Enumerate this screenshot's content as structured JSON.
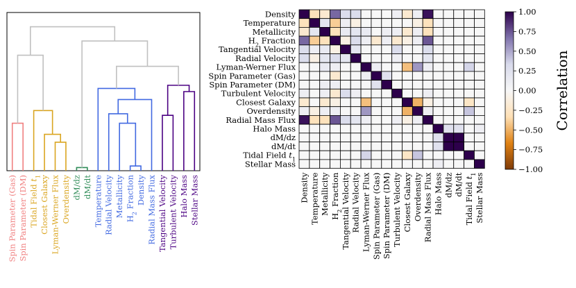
{
  "chart_data": [
    {
      "type": "dendrogram",
      "leaves": [
        {
          "label": "Spin Parameter (Gas)",
          "group": "red"
        },
        {
          "label": "Spin Parameter (DM)",
          "group": "red"
        },
        {
          "label": "Tidal Field t1",
          "group": "gold"
        },
        {
          "label": "Closest Galaxy",
          "group": "gold"
        },
        {
          "label": "Lyman-Werner Flux",
          "group": "gold"
        },
        {
          "label": "Overdensity",
          "group": "gold"
        },
        {
          "label": "dM/dz",
          "group": "green"
        },
        {
          "label": "dM/dt",
          "group": "green"
        },
        {
          "label": "Temperature",
          "group": "blue"
        },
        {
          "label": "Radial Velocity",
          "group": "blue"
        },
        {
          "label": "Metallicity",
          "group": "blue"
        },
        {
          "label": "H2 Fraction",
          "group": "blue"
        },
        {
          "label": "Density",
          "group": "blue"
        },
        {
          "label": "Radial Mass Flux",
          "group": "blue"
        },
        {
          "label": "Tangential Velocity",
          "group": "purple"
        },
        {
          "label": "Turbulent Velocity",
          "group": "purple"
        },
        {
          "label": "Halo Mass",
          "group": "purple"
        },
        {
          "label": "Stellar Mass",
          "group": "purple"
        }
      ],
      "group_colors": {
        "red": "#f08080",
        "gold": "#daa520",
        "green": "#2e8b57",
        "blue": "#4169e1",
        "purple": "#4b0082",
        "link": "#c0c0c0"
      },
      "merges": [
        {
          "a": 0,
          "b": 1,
          "h": 0.3
        },
        {
          "a": 4,
          "b": 5,
          "h": 0.18
        },
        {
          "a": 3,
          "b": 19,
          "h": 0.23
        },
        {
          "a": 2,
          "b": 20,
          "h": 0.38
        },
        {
          "a": 6,
          "b": 7,
          "h": 0.02
        },
        {
          "a": 11,
          "b": 12,
          "h": 0.03
        },
        {
          "a": 10,
          "b": 23,
          "h": 0.3
        },
        {
          "a": 9,
          "b": 24,
          "h": 0.36
        },
        {
          "a": 25,
          "b": 13,
          "h": 0.45
        },
        {
          "a": 8,
          "b": 26,
          "h": 0.52
        },
        {
          "a": 16,
          "b": 17,
          "h": 0.5
        },
        {
          "a": 14,
          "b": 15,
          "h": 0.35
        },
        {
          "a": 29,
          "b": 28,
          "h": 0.54
        },
        {
          "a": 27,
          "b": 30,
          "h": 0.66
        },
        {
          "a": 22,
          "b": 31,
          "h": 0.82
        },
        {
          "a": 18,
          "b": 21,
          "h": 0.73
        },
        {
          "a": 33,
          "b": 32,
          "h": 0.91
        }
      ],
      "ylim": [
        0,
        1
      ]
    },
    {
      "type": "heatmap",
      "row_labels": [
        "Density",
        "Temperature",
        "Metallicity",
        "H2 Fraction",
        "Tangential Velocity",
        "Radial Velocity",
        "Lyman-Werner Flux",
        "Spin Parameter (Gas)",
        "Spin Parameter (DM)",
        "Turbulent Velocity",
        "Closest Galaxy",
        "Overdensity",
        "Radial Mass Flux",
        "Halo Mass",
        "dM/dz",
        "dM/dt",
        "Tidal Field t1",
        "Stellar Mass"
      ],
      "col_labels": [
        "Density",
        "Temperature",
        "Metallicity",
        "H2 Fraction",
        "Tangential Velocity",
        "Radial Velocity",
        "Lyman-Werner Flux",
        "Spin Parameter (Gas)",
        "Spin Parameter (DM)",
        "Turbulent Velocity",
        "Closest Galaxy",
        "Overdensity",
        "Radial Mass Flux",
        "Halo Mass",
        "dM/dz",
        "dM/dt",
        "Tidal Field t1",
        "Stellar Mass"
      ],
      "values": [
        [
          1,
          -0.3,
          -0.2,
          0.7,
          0.3,
          0.3,
          0,
          0,
          0,
          0.1,
          -0.2,
          0.1,
          0.95,
          0,
          0,
          0,
          0,
          0
        ],
        [
          -0.3,
          1,
          0.2,
          -0.4,
          0.1,
          -0.1,
          0,
          0,
          0,
          0,
          0,
          -0.1,
          -0.3,
          0,
          0,
          0,
          0,
          0
        ],
        [
          -0.2,
          0.2,
          1,
          -0.3,
          0.15,
          0.2,
          0.15,
          0,
          0.1,
          0.1,
          -0.2,
          0.1,
          -0.3,
          0,
          0,
          0,
          0,
          0
        ],
        [
          0.7,
          -0.4,
          -0.3,
          1,
          -0.1,
          0.3,
          0.1,
          -0.2,
          0.1,
          -0.2,
          -0.1,
          0.1,
          0.75,
          0,
          0,
          0,
          0,
          0
        ],
        [
          0.3,
          0.1,
          0.15,
          -0.1,
          1,
          0.2,
          0,
          0,
          0,
          0.3,
          0,
          0,
          0.3,
          0,
          0,
          0,
          0,
          0
        ],
        [
          0.3,
          -0.1,
          0.2,
          0.3,
          0.2,
          1,
          0,
          0,
          0,
          0.1,
          0,
          0,
          0.2,
          0,
          0,
          0,
          0,
          0
        ],
        [
          0,
          0,
          0.15,
          0.1,
          0,
          0,
          1,
          0.1,
          0,
          0,
          -0.45,
          0.55,
          0.1,
          0,
          0,
          0,
          0.35,
          0
        ],
        [
          0,
          0,
          0,
          -0.2,
          0,
          0,
          0.1,
          1,
          0.25,
          0,
          0,
          0,
          0,
          0,
          0,
          0,
          0,
          0
        ],
        [
          0,
          0,
          0.1,
          0.1,
          0,
          0,
          0,
          0.25,
          1,
          0,
          0,
          0,
          0,
          0,
          0,
          0,
          0,
          0
        ],
        [
          0.1,
          0,
          0.1,
          -0.2,
          0.3,
          0.1,
          0,
          0,
          0,
          1,
          0,
          0,
          0.1,
          0,
          0,
          0,
          0,
          0
        ],
        [
          -0.2,
          0,
          -0.2,
          -0.1,
          0,
          0,
          -0.45,
          0,
          0,
          0,
          1,
          -0.5,
          -0.1,
          0,
          0,
          0,
          -0.25,
          0
        ],
        [
          0.1,
          -0.1,
          0.1,
          0.1,
          0,
          0,
          0.55,
          0,
          0,
          0,
          -0.5,
          1,
          0.1,
          0,
          0,
          0,
          0.4,
          0
        ],
        [
          0.95,
          -0.3,
          -0.3,
          0.75,
          0.3,
          0.2,
          0.1,
          0,
          0,
          0.1,
          -0.1,
          0.1,
          1,
          0,
          0,
          0,
          0,
          0
        ],
        [
          0,
          0,
          0,
          0,
          0,
          0,
          0,
          0,
          0,
          0,
          0,
          0,
          0,
          1,
          0.25,
          0.25,
          0,
          0.1
        ],
        [
          0,
          0,
          0,
          0,
          0,
          0,
          0,
          0,
          0,
          0,
          0,
          0,
          0,
          0.25,
          1,
          1,
          0,
          0
        ],
        [
          0,
          0,
          0,
          0,
          0,
          0,
          0,
          0,
          0,
          0,
          0,
          0,
          0,
          0.25,
          1,
          1,
          0,
          0
        ],
        [
          0,
          0,
          0,
          0,
          0,
          0,
          0.35,
          0,
          0,
          0,
          -0.25,
          0.4,
          0,
          0,
          0,
          0,
          1,
          0
        ],
        [
          0,
          0,
          0,
          0,
          0,
          0,
          0,
          0,
          0,
          0,
          0,
          0,
          0,
          0.1,
          0,
          0,
          0,
          1
        ]
      ],
      "vlim": [
        -1,
        1
      ],
      "colorbar_label": "Correlation",
      "colorbar_ticks": [
        "1.00",
        "0.75",
        "0.50",
        "0.25",
        "0.00",
        "−0.25",
        "−0.50",
        "−0.75",
        "−1.00"
      ],
      "colormap": [
        "#7f3b08",
        "#e08214",
        "#fee0b6",
        "#f7f7f7",
        "#d8daeb",
        "#8073ac",
        "#2d004b"
      ]
    }
  ]
}
